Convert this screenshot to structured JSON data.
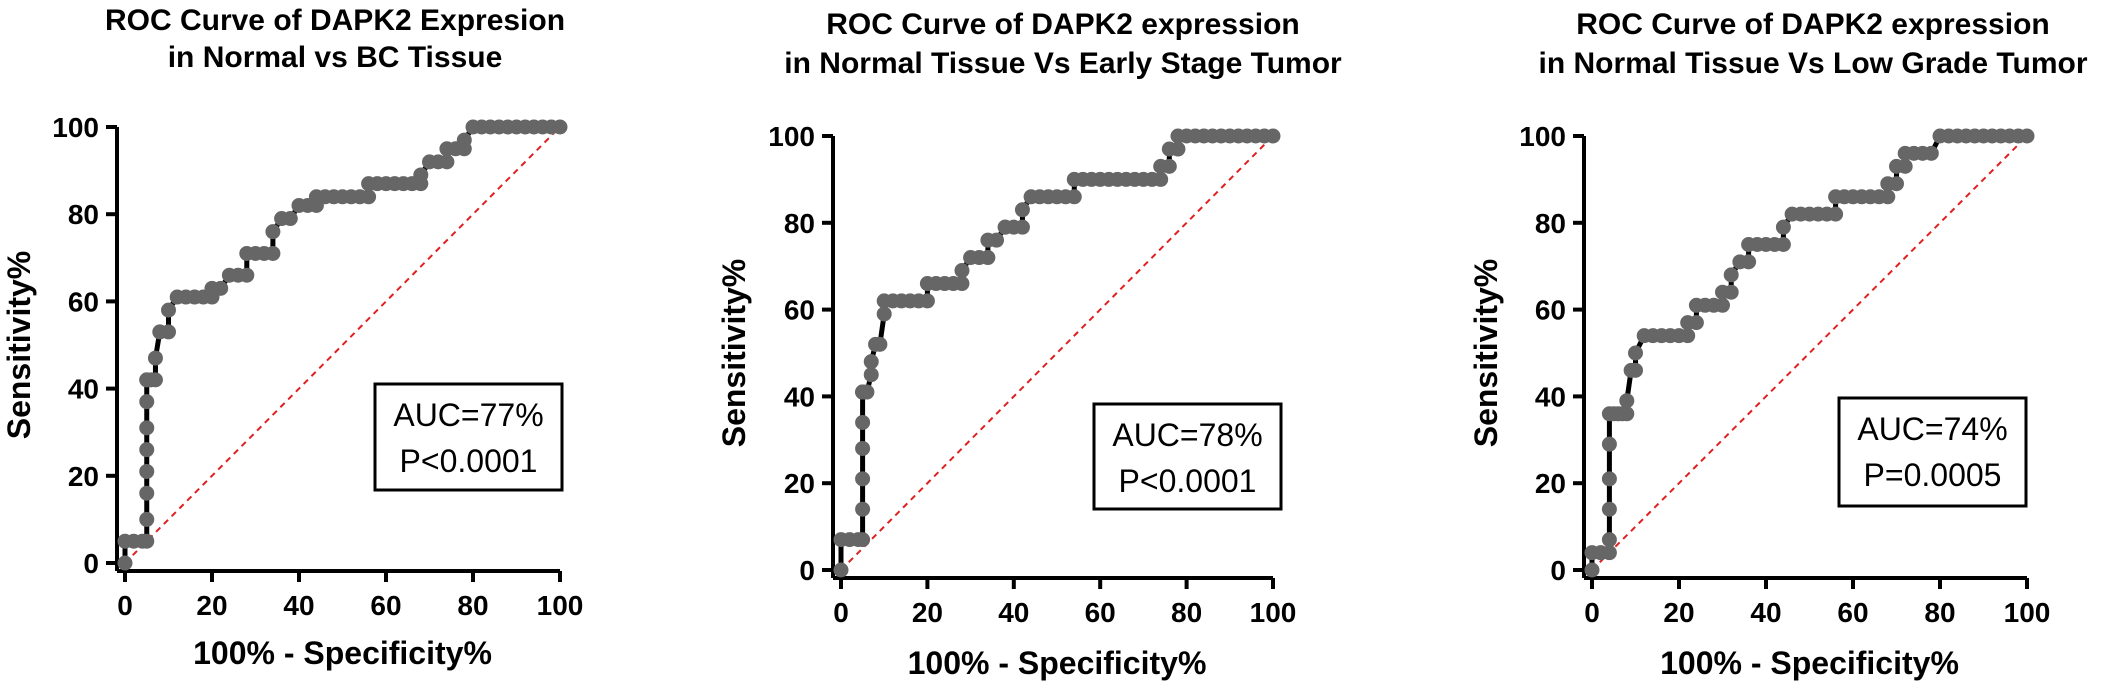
{
  "chart_data": [
    {
      "type": "line",
      "title_lines": [
        "ROC Curve of DAPK2 Expresion",
        "in Normal vs BC Tissue"
      ],
      "xlabel": "100% - Specificity%",
      "ylabel": "Sensitivity%",
      "xlim": [
        0,
        100
      ],
      "ylim": [
        0,
        100
      ],
      "xticks": [
        "0",
        "20",
        "40",
        "60",
        "80",
        "100"
      ],
      "yticks": [
        "0",
        "20",
        "40",
        "60",
        "80",
        "100"
      ],
      "annotation": [
        "AUC=77%",
        "P<0.0001"
      ],
      "reference_line": {
        "x": [
          0,
          100
        ],
        "y": [
          0,
          100
        ],
        "color": "#e02020",
        "style": "dashed"
      },
      "series": [
        {
          "color": "#666666",
          "x": [
            0,
            0,
            2,
            4,
            5,
            5,
            5,
            5,
            5,
            5,
            5,
            5,
            5,
            6,
            7,
            7,
            8,
            10,
            10,
            12,
            14,
            16,
            18,
            20,
            20,
            22,
            24,
            26,
            28,
            28,
            30,
            32,
            34,
            34,
            36,
            38,
            40,
            42,
            44,
            44,
            46,
            48,
            50,
            52,
            54,
            56,
            56,
            58,
            60,
            62,
            64,
            66,
            68,
            68,
            70,
            72,
            74,
            74,
            76,
            78,
            78,
            80,
            82,
            84,
            86,
            88,
            90,
            92,
            94,
            96,
            98,
            100
          ],
          "y": [
            0,
            5,
            5,
            5,
            5,
            10,
            16,
            21,
            26,
            31,
            37,
            42,
            42,
            42,
            42,
            47,
            53,
            53,
            58,
            61,
            61,
            61,
            61,
            61,
            63,
            63,
            66,
            66,
            66,
            71,
            71,
            71,
            71,
            76,
            79,
            79,
            82,
            82,
            82,
            84,
            84,
            84,
            84,
            84,
            84,
            84,
            87,
            87,
            87,
            87,
            87,
            87,
            87,
            89,
            92,
            92,
            92,
            95,
            95,
            95,
            97,
            100,
            100,
            100,
            100,
            100,
            100,
            100,
            100,
            100,
            100,
            100
          ]
        }
      ]
    },
    {
      "type": "line",
      "title_lines": [
        "ROC Curve of DAPK2 expression",
        "in Normal Tissue Vs Early Stage Tumor"
      ],
      "xlabel": "100% - Specificity%",
      "ylabel": "Sensitivity%",
      "xlim": [
        0,
        100
      ],
      "ylim": [
        0,
        100
      ],
      "xticks": [
        "0",
        "20",
        "40",
        "60",
        "80",
        "100"
      ],
      "yticks": [
        "0",
        "20",
        "40",
        "60",
        "80",
        "100"
      ],
      "annotation": [
        "AUC=78%",
        "P<0.0001"
      ],
      "reference_line": {
        "x": [
          0,
          100
        ],
        "y": [
          0,
          100
        ],
        "color": "#e02020",
        "style": "dashed"
      },
      "series": [
        {
          "color": "#666666",
          "x": [
            0,
            0,
            2,
            4,
            5,
            5,
            5,
            5,
            5,
            5,
            5,
            5,
            6,
            7,
            7,
            8,
            9,
            10,
            10,
            12,
            14,
            16,
            18,
            20,
            20,
            22,
            24,
            26,
            28,
            28,
            30,
            32,
            34,
            34,
            36,
            38,
            38,
            40,
            42,
            42,
            44,
            46,
            48,
            50,
            52,
            54,
            54,
            56,
            58,
            60,
            62,
            64,
            66,
            68,
            70,
            72,
            74,
            74,
            76,
            76,
            78,
            78,
            80,
            82,
            84,
            86,
            88,
            90,
            92,
            94,
            96,
            98,
            100
          ],
          "y": [
            0,
            7,
            7,
            7,
            7,
            14,
            21,
            28,
            34,
            41,
            41,
            41,
            41,
            45,
            48,
            52,
            52,
            59,
            62,
            62,
            62,
            62,
            62,
            62,
            66,
            66,
            66,
            66,
            66,
            69,
            72,
            72,
            72,
            76,
            76,
            79,
            79,
            79,
            79,
            83,
            86,
            86,
            86,
            86,
            86,
            86,
            90,
            90,
            90,
            90,
            90,
            90,
            90,
            90,
            90,
            90,
            90,
            93,
            93,
            97,
            97,
            100,
            100,
            100,
            100,
            100,
            100,
            100,
            100,
            100,
            100,
            100,
            100
          ]
        }
      ]
    },
    {
      "type": "line",
      "title_lines": [
        "ROC Curve of DAPK2 expression",
        "in Normal Tissue Vs Low Grade Tumor"
      ],
      "xlabel": "100% - Specificity%",
      "ylabel": "Sensitivity%",
      "xlim": [
        0,
        100
      ],
      "ylim": [
        0,
        100
      ],
      "xticks": [
        "0",
        "20",
        "40",
        "60",
        "80",
        "100"
      ],
      "yticks": [
        "0",
        "20",
        "40",
        "60",
        "80",
        "100"
      ],
      "annotation": [
        "AUC=74%",
        "P=0.0005"
      ],
      "reference_line": {
        "x": [
          0,
          100
        ],
        "y": [
          0,
          100
        ],
        "color": "#e02020",
        "style": "dashed"
      },
      "series": [
        {
          "color": "#666666",
          "x": [
            0,
            0,
            2,
            4,
            4,
            4,
            4,
            4,
            4,
            5,
            6,
            7,
            8,
            8,
            9,
            10,
            10,
            12,
            14,
            16,
            18,
            20,
            22,
            22,
            24,
            24,
            26,
            28,
            30,
            30,
            32,
            32,
            34,
            36,
            36,
            38,
            40,
            42,
            44,
            44,
            46,
            48,
            50,
            52,
            54,
            56,
            56,
            58,
            60,
            62,
            64,
            66,
            68,
            68,
            70,
            70,
            72,
            72,
            74,
            76,
            78,
            80,
            82,
            84,
            86,
            88,
            90,
            92,
            94,
            96,
            98,
            100
          ],
          "y": [
            0,
            4,
            4,
            4,
            7,
            14,
            21,
            29,
            36,
            36,
            36,
            36,
            36,
            39,
            46,
            46,
            50,
            54,
            54,
            54,
            54,
            54,
            54,
            57,
            57,
            61,
            61,
            61,
            61,
            64,
            64,
            68,
            71,
            71,
            75,
            75,
            75,
            75,
            75,
            79,
            82,
            82,
            82,
            82,
            82,
            82,
            86,
            86,
            86,
            86,
            86,
            86,
            86,
            89,
            89,
            93,
            93,
            96,
            96,
            96,
            96,
            100,
            100,
            100,
            100,
            100,
            100,
            100,
            100,
            100,
            100,
            100
          ]
        }
      ]
    }
  ]
}
